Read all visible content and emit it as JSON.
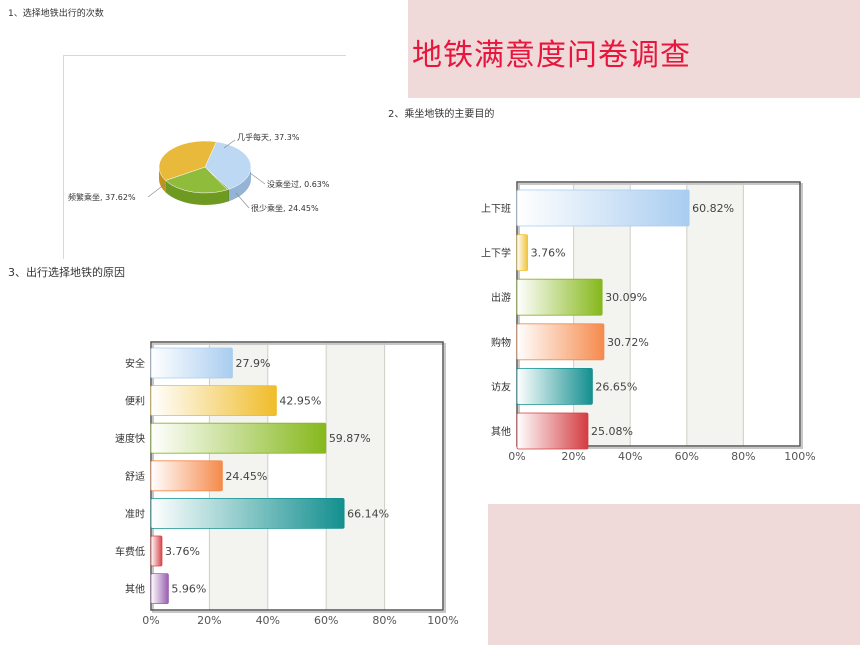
{
  "title": "地铁满意度问卷调查",
  "captions": {
    "q1": "1、选择地铁出行的次数",
    "q2": "2、乘坐地铁的主要目的",
    "q3": "3、出行选择地铁的原因"
  },
  "chart_data": [
    {
      "type": "pie",
      "labels": [
        "几乎每天",
        "没乘坐过",
        "很少乘坐",
        "频繁乘坐"
      ],
      "values": [
        37.3,
        0.63,
        24.45,
        37.62
      ],
      "display_labels": [
        "几乎每天, 37.3%",
        "没乘坐过, 0.63%",
        "很少乘坐, 24.45%",
        "频繁乘坐, 37.62%"
      ],
      "colors": [
        "#bcd8f3",
        "#7fae2c",
        "#8fbc3a",
        "#e8b93a"
      ]
    },
    {
      "type": "bar",
      "orientation": "horizontal",
      "categories": [
        "上下班",
        "上下学",
        "出游",
        "购物",
        "访友",
        "其他"
      ],
      "values": [
        60.82,
        3.76,
        30.09,
        30.72,
        26.65,
        25.08
      ],
      "value_labels": [
        "60.82%",
        "3.76%",
        "30.09%",
        "30.72%",
        "26.65%",
        "25.08%"
      ],
      "xlim": [
        0,
        100
      ],
      "xticks": [
        "0%",
        "20%",
        "40%",
        "60%",
        "80%",
        "100%"
      ],
      "colors": [
        "#a9cdf0",
        "#f0c43a",
        "#86b81c",
        "#f58a4c",
        "#138f8f",
        "#d33c40"
      ],
      "grid": true
    },
    {
      "type": "bar",
      "orientation": "horizontal",
      "categories": [
        "安全",
        "便利",
        "速度快",
        "舒适",
        "准时",
        "车费低",
        "其他"
      ],
      "values": [
        27.9,
        42.95,
        59.87,
        24.45,
        66.14,
        3.76,
        5.96
      ],
      "value_labels": [
        "27.9%",
        "42.95%",
        "59.87%",
        "24.45%",
        "66.14%",
        "3.76%",
        "5.96%"
      ],
      "xlim": [
        0,
        100
      ],
      "xticks": [
        "0%",
        "20%",
        "40%",
        "60%",
        "80%",
        "100%"
      ],
      "colors": [
        "#a9cdf0",
        "#f0bc2a",
        "#86b81c",
        "#f58a4c",
        "#138f8f",
        "#d8444a",
        "#9a5fb0"
      ],
      "grid": true
    }
  ]
}
